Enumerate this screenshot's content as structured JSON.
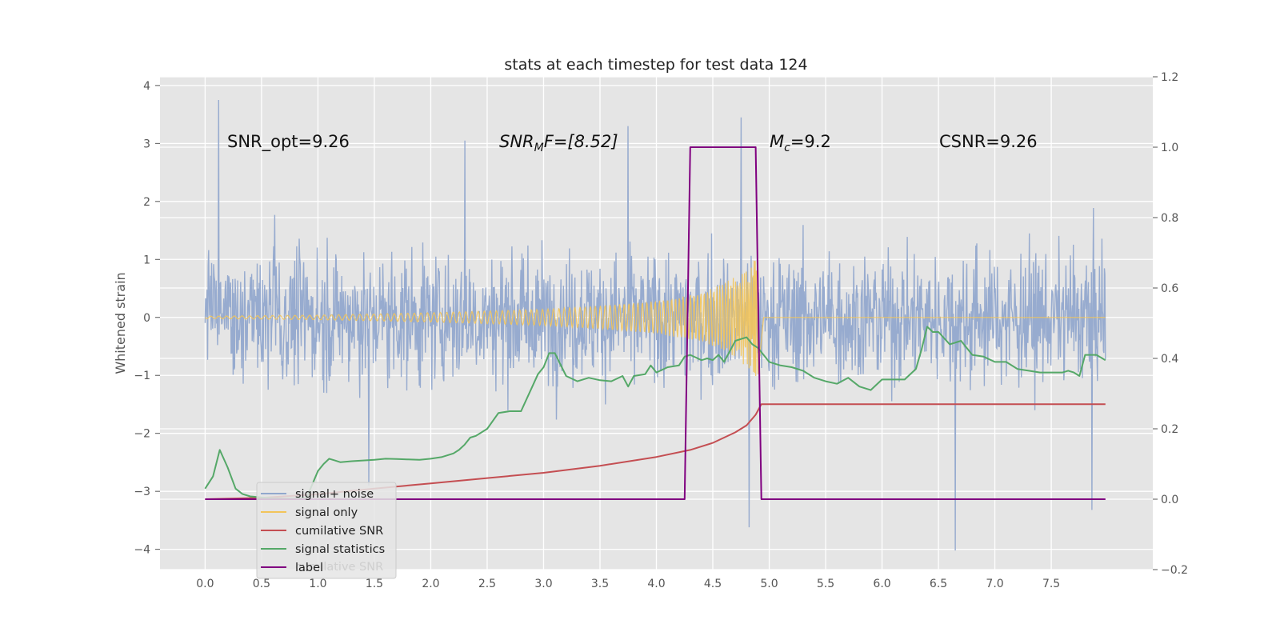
{
  "chart_data": {
    "type": "line",
    "title": "stats at each timestep for test data 124",
    "ylabel": "Whitened strain",
    "xlim": [
      -0.4,
      8.4
    ],
    "ylim": [
      -4.35,
      4.15
    ],
    "y2lim": [
      -0.2,
      1.2
    ],
    "xticks": [
      "0.0",
      "0.5",
      "1.0",
      "1.5",
      "2.0",
      "2.5",
      "3.0",
      "3.5",
      "4.0",
      "4.5",
      "5.0",
      "5.5",
      "6.0",
      "6.5",
      "7.0",
      "7.5"
    ],
    "yticks": [
      "4",
      "3",
      "2",
      "1",
      "0",
      "−1",
      "−2",
      "−3",
      "−4"
    ],
    "y2ticks": [
      "1.2",
      "1.0",
      "0.8",
      "0.6",
      "0.4",
      "0.2",
      "0.0",
      "−0.2"
    ],
    "grid": true,
    "legend_position": "lower-left",
    "annotations": {
      "snr_opt": "SNR_opt=9.26",
      "snr_mf": "SNR",
      "snr_mf_sub": "M",
      "snr_mf_rest": "F=[8.52]",
      "mc": "M",
      "mc_sub": "c",
      "mc_rest": "=9.2",
      "csnr": "CSNR=9.26"
    },
    "legend_hidden_text": "cumilative SNR",
    "series": [
      {
        "name": "signal+ noise",
        "color": "#92a8cd",
        "axis": "left",
        "style": "noise",
        "x_range": [
          0.0,
          7.98
        ],
        "typical_amplitude": 1.8,
        "peaks": [
          [
            0.12,
            3.75
          ],
          [
            3.75,
            3.3
          ],
          [
            4.75,
            3.45
          ],
          [
            2.3,
            3.05
          ],
          [
            4.82,
            -3.62
          ],
          [
            6.65,
            -4.02
          ],
          [
            7.86,
            -3.32
          ],
          [
            1.45,
            -2.9
          ]
        ]
      },
      {
        "name": "signal only",
        "color": "#f2c45a",
        "axis": "left",
        "style": "chirp",
        "x_range": [
          0.0,
          7.98
        ],
        "merger_time": 4.9,
        "envelope": {
          "x": [
            0.0,
            1.0,
            2.0,
            3.0,
            3.5,
            4.0,
            4.3,
            4.5,
            4.7,
            4.8,
            4.9,
            4.95
          ],
          "y": [
            0.02,
            0.04,
            0.08,
            0.14,
            0.2,
            0.28,
            0.38,
            0.5,
            0.7,
            0.85,
            1.05,
            0.0
          ]
        }
      },
      {
        "name": "cumilative SNR",
        "color": "#c44e52",
        "axis": "right",
        "x": [
          0.0,
          0.5,
          1.0,
          1.5,
          2.0,
          2.5,
          3.0,
          3.5,
          4.0,
          4.3,
          4.5,
          4.7,
          4.8,
          4.88,
          4.93,
          5.2,
          6.0,
          7.0,
          7.98
        ],
        "values": [
          0.0,
          0.004,
          0.014,
          0.03,
          0.045,
          0.06,
          0.075,
          0.095,
          0.12,
          0.14,
          0.16,
          0.19,
          0.21,
          0.24,
          0.27,
          0.27,
          0.27,
          0.27,
          0.27
        ]
      },
      {
        "name": "signal statistics",
        "color": "#55a868",
        "axis": "right",
        "x": [
          0.0,
          0.07,
          0.13,
          0.2,
          0.27,
          0.33,
          0.4,
          0.5,
          0.6,
          0.7,
          0.8,
          0.9,
          1.0,
          1.05,
          1.1,
          1.15,
          1.2,
          1.3,
          1.4,
          1.5,
          1.6,
          1.7,
          1.8,
          1.9,
          2.0,
          2.1,
          2.2,
          2.25,
          2.3,
          2.35,
          2.4,
          2.5,
          2.6,
          2.7,
          2.8,
          2.9,
          2.95,
          3.0,
          3.05,
          3.1,
          3.2,
          3.3,
          3.4,
          3.5,
          3.6,
          3.7,
          3.75,
          3.8,
          3.9,
          3.95,
          4.0,
          4.1,
          4.2,
          4.25,
          4.3,
          4.4,
          4.45,
          4.5,
          4.55,
          4.6,
          4.7,
          4.8,
          4.85,
          4.9,
          5.0,
          5.1,
          5.2,
          5.3,
          5.4,
          5.5,
          5.6,
          5.7,
          5.8,
          5.9,
          6.0,
          6.1,
          6.2,
          6.3,
          6.35,
          6.4,
          6.45,
          6.5,
          6.6,
          6.7,
          6.8,
          6.9,
          7.0,
          7.1,
          7.2,
          7.3,
          7.4,
          7.5,
          7.6,
          7.65,
          7.7,
          7.75,
          7.8,
          7.9,
          7.98
        ],
        "values": [
          0.03,
          0.065,
          0.14,
          0.09,
          0.03,
          0.015,
          0.008,
          0.005,
          0.003,
          0.002,
          0.002,
          0.004,
          0.08,
          0.1,
          0.115,
          0.11,
          0.105,
          0.108,
          0.11,
          0.112,
          0.115,
          0.114,
          0.113,
          0.112,
          0.115,
          0.12,
          0.13,
          0.14,
          0.155,
          0.175,
          0.18,
          0.2,
          0.245,
          0.25,
          0.25,
          0.32,
          0.355,
          0.375,
          0.415,
          0.415,
          0.35,
          0.335,
          0.345,
          0.338,
          0.335,
          0.35,
          0.32,
          0.35,
          0.355,
          0.38,
          0.36,
          0.375,
          0.38,
          0.405,
          0.41,
          0.395,
          0.4,
          0.395,
          0.41,
          0.39,
          0.45,
          0.46,
          0.44,
          0.43,
          0.39,
          0.38,
          0.375,
          0.365,
          0.345,
          0.335,
          0.328,
          0.345,
          0.32,
          0.31,
          0.34,
          0.34,
          0.34,
          0.37,
          0.425,
          0.49,
          0.475,
          0.475,
          0.44,
          0.45,
          0.41,
          0.405,
          0.39,
          0.39,
          0.37,
          0.365,
          0.36,
          0.36,
          0.36,
          0.365,
          0.36,
          0.35,
          0.41,
          0.41,
          0.395
        ]
      },
      {
        "name": "label",
        "color": "#800080",
        "axis": "right",
        "x": [
          0.0,
          4.25,
          4.3,
          4.88,
          4.93,
          7.98
        ],
        "values": [
          0.0,
          0.0,
          1.0,
          1.0,
          0.0,
          0.0
        ]
      }
    ]
  }
}
